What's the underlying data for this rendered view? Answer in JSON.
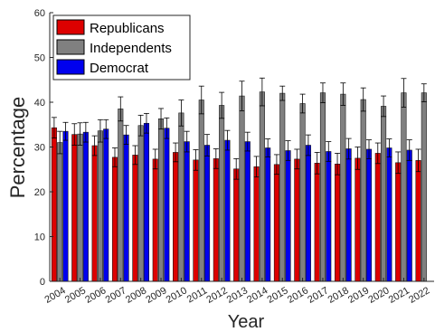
{
  "chart_data": {
    "type": "bar",
    "title": "",
    "xlabel": "Year",
    "ylabel": "Percentage",
    "ylim": [
      0,
      60
    ],
    "yticks": [
      0,
      10,
      20,
      30,
      40,
      50,
      60
    ],
    "grid": false,
    "legend_position": "top-left",
    "categories": [
      "2004",
      "2005",
      "2006",
      "2007",
      "2008",
      "2009",
      "2010",
      "2011",
      "2012",
      "2013",
      "2014",
      "2015",
      "2016",
      "2017",
      "2018",
      "2019",
      "2020",
      "2021",
      "2022"
    ],
    "series": [
      {
        "name": "Republicans",
        "color": "#dd0000",
        "values": [
          34.3,
          32.8,
          30.3,
          27.7,
          28.2,
          27.3,
          28.8,
          27.1,
          27.4,
          25.1,
          25.6,
          26.1,
          27.3,
          26.4,
          26.2,
          27.5,
          28.6,
          26.5,
          27.0
        ],
        "errors": [
          2.3,
          2.4,
          2.2,
          2.1,
          2.1,
          2.2,
          2.1,
          2.3,
          2.2,
          2.3,
          2.3,
          2.2,
          2.2,
          2.4,
          2.4,
          2.5,
          2.3,
          2.4,
          2.5
        ]
      },
      {
        "name": "Independents",
        "color": "#808080",
        "values": [
          31.0,
          32.9,
          33.6,
          38.5,
          34.8,
          36.3,
          37.6,
          40.5,
          39.3,
          41.4,
          42.3,
          42.0,
          39.7,
          42.1,
          41.8,
          40.6,
          39.1,
          42.1,
          42.1
        ],
        "errors": [
          2.5,
          2.5,
          2.5,
          2.7,
          2.3,
          2.3,
          2.9,
          3.1,
          2.9,
          3.3,
          3.1,
          1.6,
          2.1,
          2.2,
          2.5,
          2.6,
          2.3,
          3.2,
          2.0
        ]
      },
      {
        "name": "Democrat",
        "color": "#0000ee",
        "values": [
          33.5,
          33.3,
          34.0,
          32.7,
          35.3,
          34.2,
          31.2,
          30.4,
          31.5,
          31.2,
          29.8,
          29.2,
          30.4,
          29.0,
          29.6,
          29.5,
          29.8,
          29.3,
          0
        ],
        "errors": [
          2.0,
          2.2,
          2.1,
          2.1,
          2.2,
          2.3,
          2.3,
          2.4,
          2.2,
          2.1,
          2.0,
          2.2,
          2.3,
          2.2,
          2.3,
          2.1,
          2.0,
          2.3,
          0
        ]
      }
    ]
  }
}
